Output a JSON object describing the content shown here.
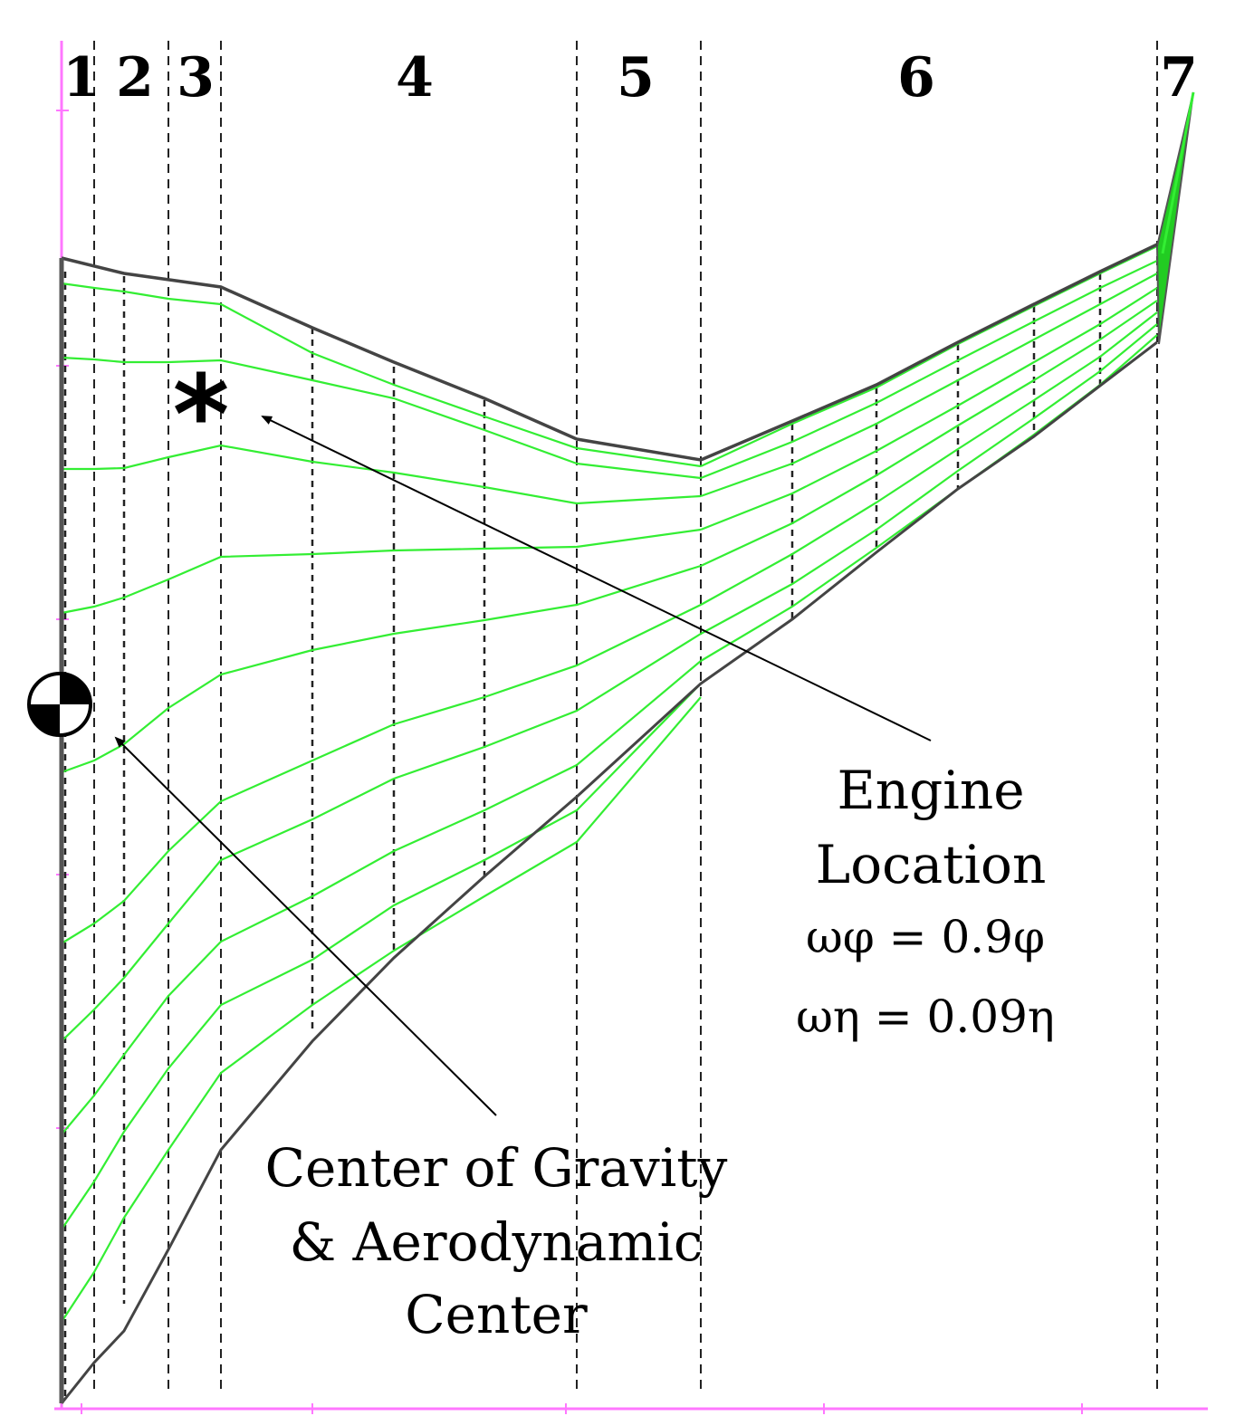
{
  "section_labels": [
    "1",
    "2",
    "3",
    "4",
    "5",
    "6",
    "7"
  ],
  "engine_annotation": {
    "line1": "Engine",
    "line2": "Location",
    "omega_phi": "ωφ = 0.9φ",
    "omega_eta": "ωη = 0.09η",
    "marker": "*"
  },
  "cg_annotation": {
    "line1": "Center of Gravity",
    "line2": "& Aerodynamic",
    "line3": "Center"
  },
  "colors": {
    "mesh_line": "#33ee33",
    "outline": "#444444",
    "axis": "#ff77ff",
    "dashed": "#222222",
    "tip_fill": "#22cc22"
  }
}
